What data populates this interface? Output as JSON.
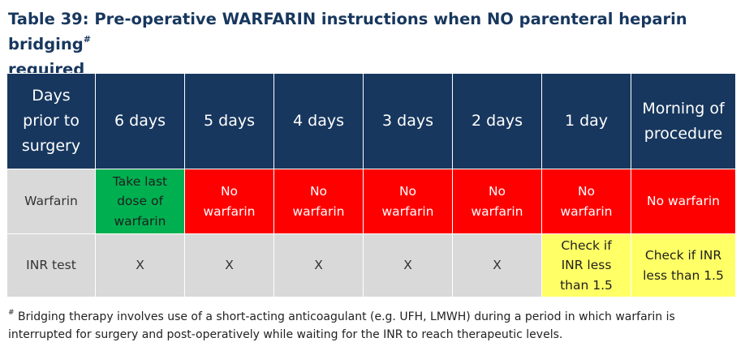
{
  "title": {
    "text": "Table 39: Pre-operative WARFARIN instructions when NO parenteral heparin bridging",
    "mark": "#",
    "text2": "required"
  },
  "table": {
    "headers": [
      "Days prior to surgery",
      "6 days",
      "5 days",
      "4 days",
      "3 days",
      "2 days",
      "1 day",
      "Morning of procedure"
    ],
    "rows": [
      {
        "label": "Warfarin",
        "cells": [
          "Take last dose of warfarin",
          "No warfarin",
          "No warfarin",
          "No warfarin",
          "No warfarin",
          "No warfarin",
          "No warfarin"
        ]
      },
      {
        "label": "INR test",
        "cells": [
          "X",
          "X",
          "X",
          "X",
          "X",
          "Check if INR less than 1.5",
          "Check if INR less than 1.5"
        ]
      }
    ]
  },
  "footnote": {
    "mark": "#",
    "text": "Bridging therapy involves use of a short-acting anticoagulant (e.g. UFH, LMWH) during a period in which warfarin is interrupted for surgery and post-operatively while waiting for the INR to reach therapeutic levels."
  },
  "colors": {
    "header_bg": "#17375e",
    "label_bg": "#d9d9d9",
    "take_dose": "#00b050",
    "no_warfarin": "#ff0000",
    "check_inr": "#ffff66",
    "title": "#17375e"
  }
}
